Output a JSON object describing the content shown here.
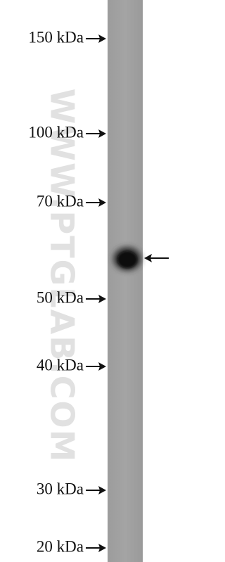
{
  "markers": [
    "150 kDa",
    "100 kDa",
    "70 kDa",
    "50 kDa",
    "40 kDa",
    "30 kDa",
    "20 kDa"
  ],
  "watermark": "WWW.PTGLAB.COM"
}
